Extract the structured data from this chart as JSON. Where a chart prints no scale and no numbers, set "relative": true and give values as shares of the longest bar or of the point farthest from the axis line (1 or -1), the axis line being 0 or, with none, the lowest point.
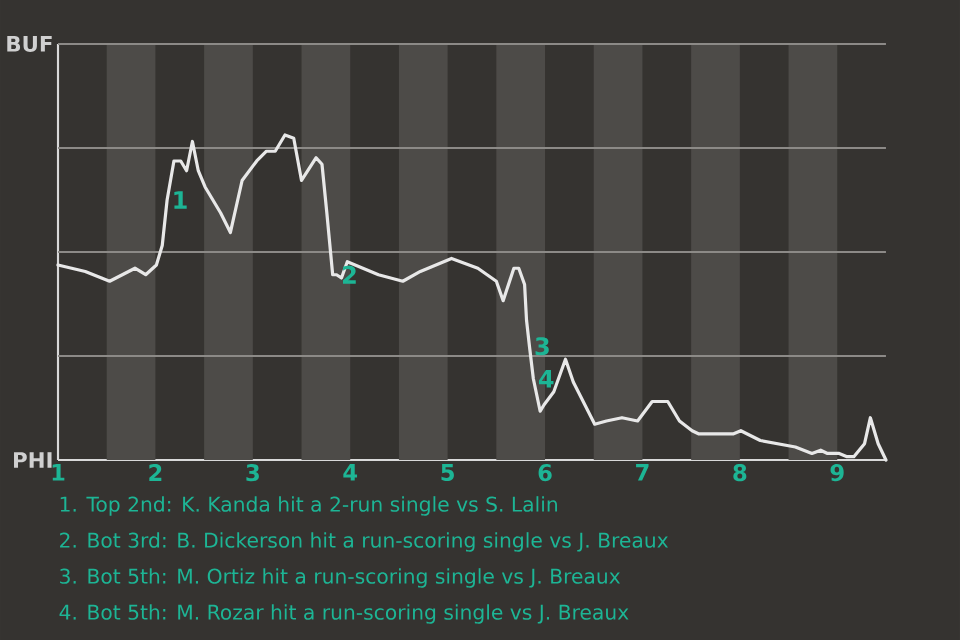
{
  "chart_data": {
    "type": "line",
    "x": [
      1.0,
      1.28,
      1.53,
      1.79,
      1.9,
      2.01,
      2.07,
      2.12,
      2.19,
      2.26,
      2.32,
      2.38,
      2.44,
      2.51,
      2.67,
      2.77,
      2.89,
      3.04,
      3.14,
      3.23,
      3.33,
      3.42,
      3.5,
      3.65,
      3.71,
      3.76,
      3.82,
      3.86,
      3.91,
      3.97,
      4.29,
      4.54,
      4.72,
      5.04,
      5.31,
      5.5,
      5.57,
      5.68,
      5.73,
      5.79,
      5.81,
      5.84,
      5.88,
      5.95,
      5.99,
      6.09,
      6.21,
      6.29,
      6.51,
      6.63,
      6.79,
      6.95,
      7.1,
      7.26,
      7.38,
      7.51,
      7.58,
      7.82,
      7.93,
      8.01,
      8.21,
      8.39,
      8.57,
      8.74,
      8.83,
      8.9,
      9.02,
      9.1,
      9.17,
      9.28,
      9.34,
      9.42,
      9.5
    ],
    "values": [
      0.6,
      0.58,
      0.55,
      0.59,
      0.57,
      0.6,
      0.66,
      0.8,
      0.92,
      0.92,
      0.89,
      0.98,
      0.89,
      0.84,
      0.76,
      0.7,
      0.86,
      0.92,
      0.95,
      0.95,
      1,
      0.99,
      0.86,
      0.93,
      0.91,
      0.76,
      0.57,
      0.57,
      0.56,
      0.61,
      0.57,
      0.55,
      0.58,
      0.62,
      0.59,
      0.55,
      0.49,
      0.59,
      0.59,
      0.54,
      0.43,
      0.35,
      0.25,
      0.15,
      0.17,
      0.21,
      0.31,
      0.24,
      0.11,
      0.12,
      0.13,
      0.12,
      0.18,
      0.18,
      0.12,
      0.09,
      0.08,
      0.08,
      0.08,
      0.09,
      0.06,
      0.05,
      0.04,
      0.02,
      0.03,
      0.02,
      0.02,
      0.01,
      0.01,
      0.05,
      0.13,
      0.05,
      0
    ],
    "relative": true,
    "color": "#e8e8e8",
    "line_style": "solid",
    "xlim": [
      1,
      9.5
    ],
    "xticks": [
      1,
      2,
      3,
      4,
      5,
      6,
      7,
      8,
      9
    ],
    "grid": "y",
    "bands": [
      {
        "axis": "x",
        "from": 1.5,
        "to": 2,
        "color": "#4d4b48"
      },
      {
        "axis": "x",
        "from": 2.5,
        "to": 3,
        "color": "#4d4b48"
      },
      {
        "axis": "x",
        "from": 3.5,
        "to": 4,
        "color": "#4d4b48"
      },
      {
        "axis": "x",
        "from": 4.5,
        "to": 5,
        "color": "#4d4b48"
      },
      {
        "axis": "x",
        "from": 5.5,
        "to": 6,
        "color": "#4d4b48"
      },
      {
        "axis": "x",
        "from": 6.5,
        "to": 7,
        "color": "#4d4b48"
      },
      {
        "axis": "x",
        "from": 7.5,
        "to": 8,
        "color": "#4d4b48"
      },
      {
        "axis": "x",
        "from": 8.5,
        "to": 9,
        "color": "#4d4b48"
      }
    ],
    "annotations": [
      {
        "text": "1",
        "x": 2.12,
        "y": 0.8
      },
      {
        "text": "2",
        "x": 3.86,
        "y": 0.57
      },
      {
        "text": "3",
        "x": 5.84,
        "y": 0.35
      },
      {
        "text": "4",
        "x": 5.88,
        "y": 0.25
      },
      "BUF",
      "PHI",
      "1. Top 2nd: K. Kanda hit a 2-run single vs S. Lalin",
      "2. Bot 3rd: B. Dickerson hit a run-scoring single vs J. Breaux",
      "3. Bot 5th: M. Ortiz hit a run-scoring single vs J. Breaux",
      "4. Bot 5th: M. Rozar hit a run-scoring single vs J. Breaux"
    ]
  }
}
